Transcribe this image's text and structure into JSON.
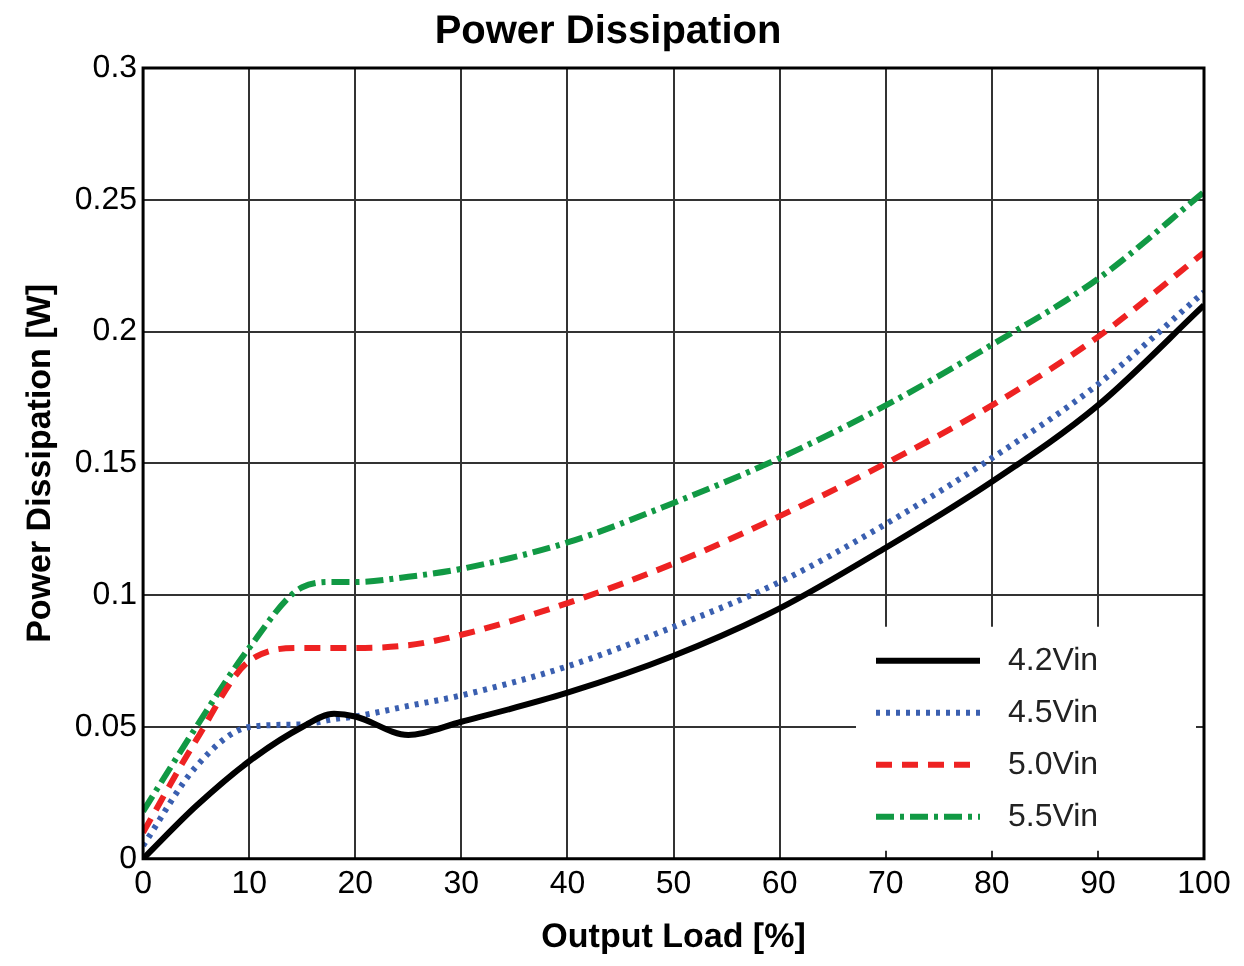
{
  "chart_data": {
    "type": "line",
    "title": "Power Dissipation",
    "xlabel": "Output Load [%]",
    "ylabel": "Power Dissipation [W]",
    "x": [
      0,
      5,
      10,
      15,
      18,
      20,
      25,
      30,
      40,
      50,
      60,
      70,
      80,
      90,
      100
    ],
    "series": [
      {
        "name": "4.2Vin",
        "color": "#000000",
        "line_style": "solid",
        "values": [
          0,
          0.02,
          0.037,
          0.05,
          0.055,
          0.054,
          0.047,
          0.052,
          0.063,
          0.077,
          0.095,
          0.118,
          0.143,
          0.172,
          0.21
        ]
      },
      {
        "name": "4.5Vin",
        "color": "#3a5fb0",
        "line_style": "dotted",
        "values": [
          0.005,
          0.035,
          0.05,
          0.051,
          0.053,
          0.054,
          0.058,
          0.062,
          0.073,
          0.088,
          0.105,
          0.127,
          0.152,
          0.18,
          0.215
        ]
      },
      {
        "name": "5.0Vin",
        "color": "#ee2222",
        "line_style": "dashed",
        "values": [
          0.01,
          0.045,
          0.075,
          0.08,
          0.08,
          0.08,
          0.081,
          0.085,
          0.097,
          0.112,
          0.13,
          0.15,
          0.172,
          0.198,
          0.23
        ]
      },
      {
        "name": "5.5Vin",
        "color": "#119944",
        "line_style": "dashdot",
        "values": [
          0.018,
          0.05,
          0.08,
          0.103,
          0.105,
          0.105,
          0.107,
          0.11,
          0.12,
          0.135,
          0.152,
          0.172,
          0.195,
          0.22,
          0.253
        ]
      }
    ],
    "xlim": [
      0,
      100
    ],
    "xticks": [
      0,
      10,
      20,
      30,
      40,
      50,
      60,
      70,
      80,
      90,
      100
    ],
    "ylim": [
      0,
      0.3
    ],
    "yticks": [
      0,
      0.05,
      0.1,
      0.15,
      0.2,
      0.25,
      0.3
    ],
    "grid": true,
    "legend": "bottom right",
    "marker": "none"
  }
}
